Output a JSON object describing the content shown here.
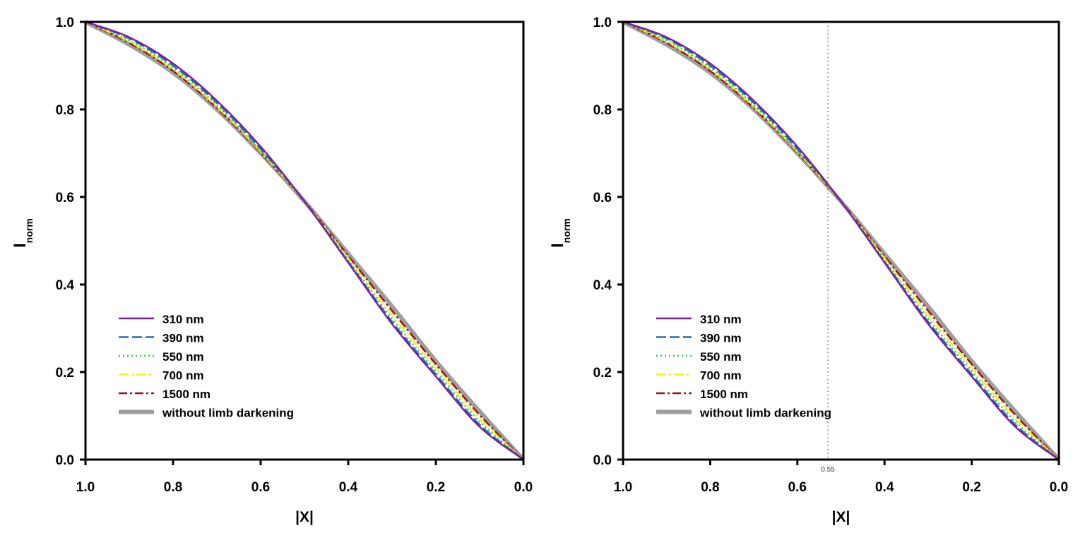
{
  "chart_data": [
    {
      "type": "line",
      "xlabel": "|X|",
      "ylabel": "I",
      "ylabel_sub": "norm",
      "xlim": [
        1.0,
        0.0
      ],
      "ylim": [
        0.0,
        1.0
      ],
      "xticks": [
        "1.0",
        "0.8",
        "0.6",
        "0.4",
        "0.2",
        "0.0"
      ],
      "yticks": [
        "0.0",
        "0.2",
        "0.4",
        "0.6",
        "0.8",
        "1.0"
      ],
      "legend_position": "bottom-left",
      "marker": null
    },
    {
      "type": "line",
      "xlabel": "|X|",
      "ylabel": "I",
      "ylabel_sub": "norm",
      "xlim": [
        1.0,
        0.0
      ],
      "ylim": [
        0.0,
        1.0
      ],
      "xticks": [
        "1.0",
        "0.8",
        "0.6",
        "0.4",
        "0.2",
        "0.0"
      ],
      "yticks": [
        "0.0",
        "0.2",
        "0.4",
        "0.6",
        "0.8",
        "1.0"
      ],
      "legend_position": "bottom-left",
      "marker": {
        "x": 0.53,
        "label": "0.55"
      }
    }
  ],
  "x": [
    1.0,
    0.9,
    0.8,
    0.7,
    0.6,
    0.5,
    0.4,
    0.3,
    0.2,
    0.1,
    0.0
  ],
  "series": [
    {
      "name": "310 nm",
      "color": "#7b1fa2",
      "dash": "",
      "values": [
        1.0,
        0.965,
        0.905,
        0.82,
        0.715,
        0.59,
        0.45,
        0.31,
        0.19,
        0.075,
        0.0
      ]
    },
    {
      "name": "390 nm",
      "color": "#1f6fb5",
      "dash": "14 5",
      "values": [
        1.0,
        0.962,
        0.9,
        0.815,
        0.71,
        0.59,
        0.452,
        0.315,
        0.195,
        0.08,
        0.0
      ]
    },
    {
      "name": "550 nm",
      "color": "#2ecc40",
      "dash": "2 4",
      "values": [
        1.0,
        0.958,
        0.895,
        0.81,
        0.705,
        0.59,
        0.456,
        0.322,
        0.202,
        0.087,
        0.0
      ]
    },
    {
      "name": "700 nm",
      "color": "#f5ee20",
      "dash": "14 4 3 4",
      "values": [
        1.0,
        0.955,
        0.892,
        0.806,
        0.703,
        0.59,
        0.46,
        0.33,
        0.21,
        0.094,
        0.0
      ]
    },
    {
      "name": "1500 nm",
      "color": "#a01010",
      "dash": "12 4 3 4",
      "values": [
        1.0,
        0.952,
        0.888,
        0.803,
        0.701,
        0.59,
        0.465,
        0.34,
        0.218,
        0.102,
        0.0
      ]
    },
    {
      "name": "without limb darkening",
      "color": "#9e9e9e",
      "dash": "",
      "values": [
        1.0,
        0.948,
        0.884,
        0.8,
        0.7,
        0.59,
        0.47,
        0.35,
        0.225,
        0.11,
        0.0
      ]
    }
  ]
}
